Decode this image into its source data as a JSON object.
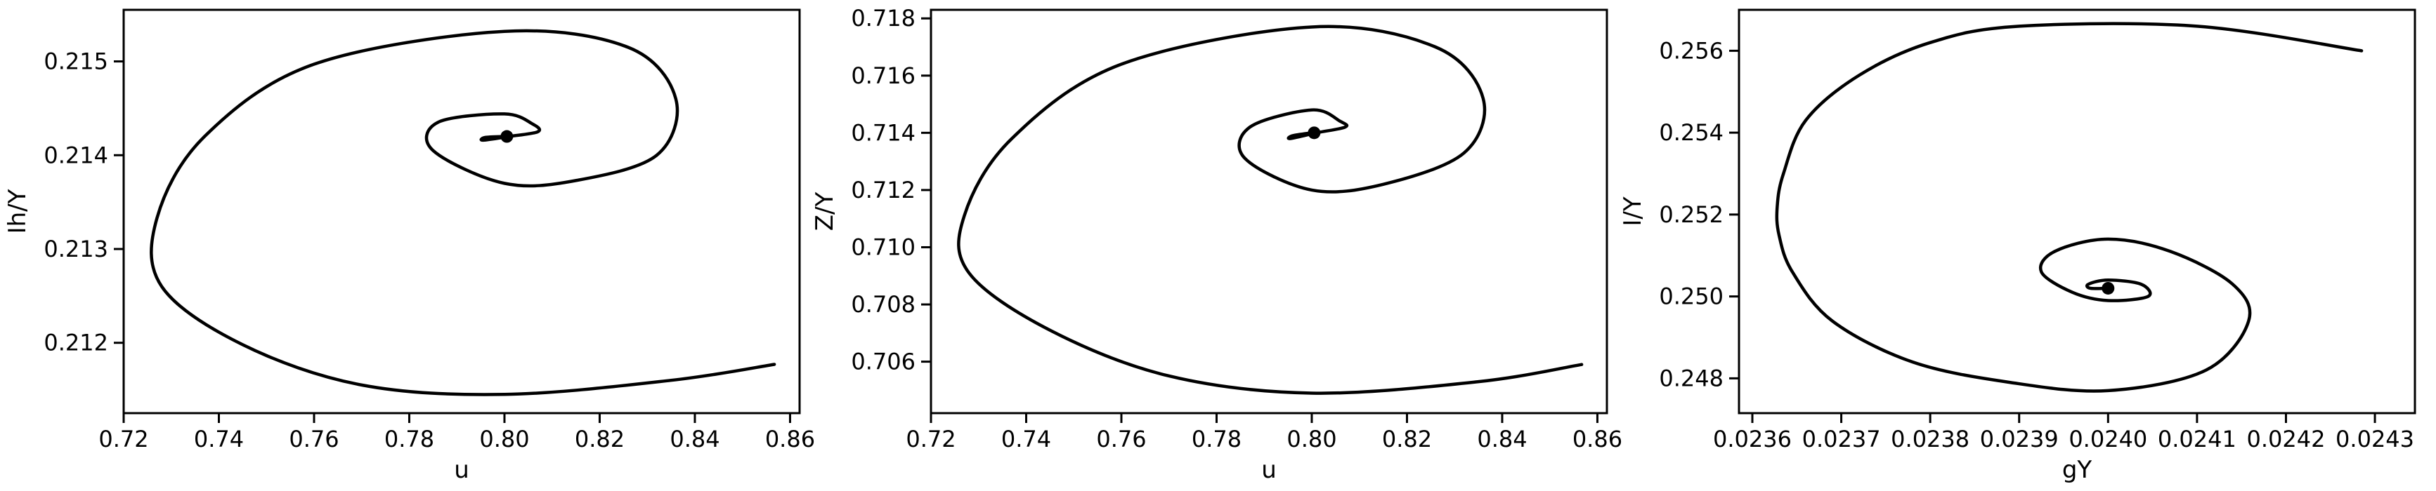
{
  "chart_data": [
    {
      "type": "line",
      "xlabel": "u",
      "ylabel": "Ih/Y",
      "xlim": [
        0.72,
        0.862
      ],
      "ylim": [
        0.21125,
        0.21555
      ],
      "xticks": [
        0.72,
        0.74,
        0.76,
        0.78,
        0.8,
        0.82,
        0.84,
        0.86
      ],
      "xtick_labels": [
        "0.72",
        "0.74",
        "0.76",
        "0.78",
        "0.80",
        "0.82",
        "0.84",
        "0.86"
      ],
      "yticks": [
        0.212,
        0.213,
        0.214,
        0.215
      ],
      "ytick_labels": [
        "0.212",
        "0.213",
        "0.214",
        "0.215"
      ],
      "grid": false,
      "series": [
        {
          "color": "#000000",
          "x": [
            0.8567,
            0.835,
            0.8,
            0.77,
            0.745,
            0.728,
            0.727,
            0.737,
            0.76,
            0.8,
            0.826,
            0.836,
            0.832,
            0.815,
            0.8,
            0.785,
            0.786,
            0.8,
            0.806,
            0.807,
            0.801,
            0.7955,
            0.796,
            0.8
          ],
          "y": [
            0.21177,
            0.2116,
            0.21145,
            0.21155,
            0.21198,
            0.2126,
            0.21333,
            0.2142,
            0.21497,
            0.21532,
            0.21515,
            0.2146,
            0.214,
            0.21373,
            0.2137,
            0.21405,
            0.21435,
            0.21444,
            0.21433,
            0.21425,
            0.2142,
            0.21416,
            0.21419,
            0.2142
          ]
        }
      ],
      "endpoint": [
        0.8005,
        0.2142
      ]
    },
    {
      "type": "line",
      "xlabel": "u",
      "ylabel": "Z/Y",
      "xlim": [
        0.72,
        0.862
      ],
      "ylim": [
        0.7042,
        0.7183
      ],
      "xticks": [
        0.72,
        0.74,
        0.76,
        0.78,
        0.8,
        0.82,
        0.84,
        0.86
      ],
      "xtick_labels": [
        "0.72",
        "0.74",
        "0.76",
        "0.78",
        "0.80",
        "0.82",
        "0.84",
        "0.86"
      ],
      "yticks": [
        0.706,
        0.708,
        0.71,
        0.712,
        0.714,
        0.716,
        0.718
      ],
      "ytick_labels": [
        "0.706",
        "0.708",
        "0.710",
        "0.712",
        "0.714",
        "0.716",
        "0.718"
      ],
      "grid": false,
      "series": [
        {
          "color": "#000000",
          "x": [
            0.8567,
            0.835,
            0.8,
            0.77,
            0.745,
            0.728,
            0.727,
            0.737,
            0.76,
            0.8,
            0.826,
            0.836,
            0.832,
            0.815,
            0.8,
            0.786,
            0.787,
            0.8,
            0.806,
            0.807,
            0.801,
            0.7955,
            0.796,
            0.8
          ],
          "y": [
            0.7059,
            0.7053,
            0.7049,
            0.7055,
            0.7071,
            0.7091,
            0.7111,
            0.7138,
            0.7164,
            0.7177,
            0.717,
            0.7152,
            0.7133,
            0.7122,
            0.712,
            0.7131,
            0.7142,
            0.7148,
            0.7144,
            0.7142,
            0.714,
            0.7138,
            0.7139,
            0.714
          ]
        }
      ],
      "endpoint": [
        0.8005,
        0.714
      ]
    },
    {
      "type": "line",
      "xlabel": "gY",
      "ylabel": "I/Y",
      "xlim": [
        0.023585,
        0.024345
      ],
      "ylim": [
        0.24715,
        0.257
      ],
      "xticks": [
        0.0236,
        0.0237,
        0.0238,
        0.0239,
        0.024,
        0.0241,
        0.0242,
        0.0243
      ],
      "xtick_labels": [
        "0.0236",
        "0.0237",
        "0.0238",
        "0.0239",
        "0.0240",
        "0.0241",
        "0.0242",
        "0.0243"
      ],
      "yticks": [
        0.248,
        0.25,
        0.252,
        0.254,
        0.256
      ],
      "ytick_labels": [
        "0.248",
        "0.250",
        "0.252",
        "0.254",
        "0.256"
      ],
      "grid": false,
      "series": [
        {
          "color": "#000000",
          "x": [
            0.024285,
            0.0241,
            0.0239,
            0.0238,
            0.02372,
            0.02366,
            0.023635,
            0.023628,
            0.02363,
            0.023645,
            0.02369,
            0.02378,
            0.02389,
            0.024,
            0.02411,
            0.024158,
            0.02414,
            0.02407,
            0.024,
            0.02394,
            0.023925,
            0.02396,
            0.024,
            0.024045,
            0.024037,
            0.024,
            0.023978,
            0.02398,
            0.024
          ],
          "y": [
            0.256,
            0.2566,
            0.2566,
            0.2562,
            0.2554,
            0.2543,
            0.253,
            0.2522,
            0.2515,
            0.2506,
            0.2494,
            0.2484,
            0.2479,
            0.2477,
            0.2482,
            0.2494,
            0.2503,
            0.2511,
            0.2514,
            0.2511,
            0.2506,
            0.2501,
            0.2499,
            0.25,
            0.2503,
            0.2504,
            0.2503,
            0.2502,
            0.2502
          ]
        }
      ],
      "endpoint": [
        0.024,
        0.2502
      ]
    }
  ]
}
